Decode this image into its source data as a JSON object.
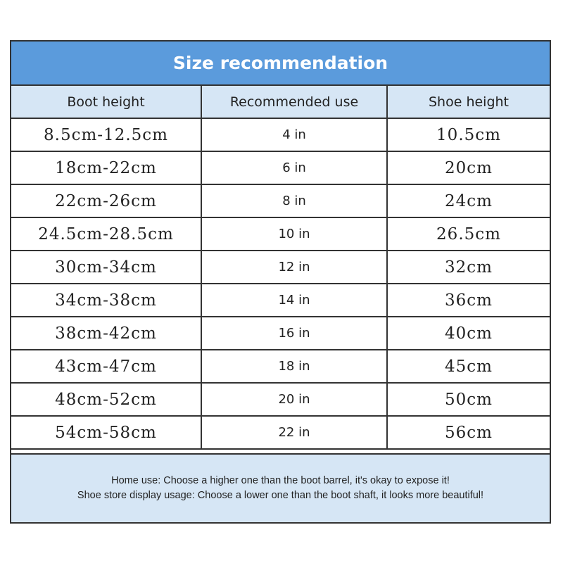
{
  "title": "Size recommendation",
  "colors": {
    "header_bg": "#5b9bdc",
    "subheader_bg": "#d6e6f5",
    "border": "#333333"
  },
  "table": {
    "headers": [
      "Boot height",
      "Recommended use",
      "Shoe height"
    ],
    "rows": [
      [
        "8.5cm-12.5cm",
        "4 in",
        "10.5cm"
      ],
      [
        "18cm-22cm",
        "6 in",
        "20cm"
      ],
      [
        "22cm-26cm",
        "8 in",
        "24cm"
      ],
      [
        "24.5cm-28.5cm",
        "10 in",
        "26.5cm"
      ],
      [
        "30cm-34cm",
        "12 in",
        "32cm"
      ],
      [
        "34cm-38cm",
        "14 in",
        "36cm"
      ],
      [
        "38cm-42cm",
        "16 in",
        "40cm"
      ],
      [
        "43cm-47cm",
        "18 in",
        "45cm"
      ],
      [
        "48cm-52cm",
        "20 in",
        "50cm"
      ],
      [
        "54cm-58cm",
        "22 in",
        "56cm"
      ]
    ]
  },
  "notes": [
    "Home use: Choose a higher one than the boot barrel, it's okay to expose it!",
    "Shoe store display usage: Choose a lower one than the boot shaft, it looks more beautiful!"
  ]
}
